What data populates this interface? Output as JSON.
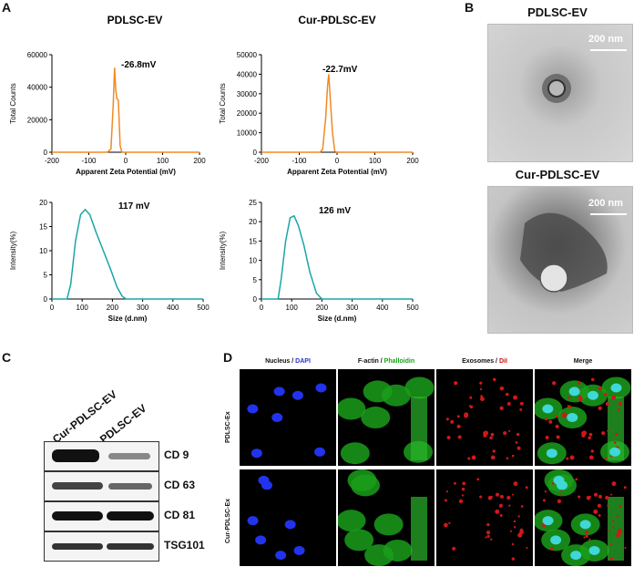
{
  "panels": {
    "a": "A",
    "b": "B",
    "c": "C",
    "d": "D"
  },
  "panel_a": {
    "charts": [
      {
        "id": "zeta-pdlsc",
        "title": "PDLSC-EV",
        "type": "line",
        "annotation": "-26.8mV",
        "xlabel": "Apparent Zeta Potential (mV)",
        "ylabel": "Total Counts",
        "xlim": [
          -200,
          200
        ],
        "ylim": [
          0,
          60000
        ],
        "xticks": [
          "-200",
          "-100",
          "0",
          "100",
          "200"
        ],
        "yticks": [
          "0",
          "20000",
          "40000",
          "60000"
        ],
        "color": "#f08a24"
      },
      {
        "id": "zeta-cur",
        "title": "Cur-PDLSC-EV",
        "type": "line",
        "annotation": "-22.7mV",
        "xlabel": "Apparent Zeta Potential (mV)",
        "ylabel": "Total Counts",
        "xlim": [
          -200,
          200
        ],
        "ylim": [
          0,
          50000
        ],
        "xticks": [
          "-200",
          "-100",
          "0",
          "100",
          "200"
        ],
        "yticks": [
          "0",
          "10000",
          "20000",
          "30000",
          "40000",
          "50000"
        ],
        "color": "#f08a24"
      },
      {
        "id": "size-pdlsc",
        "type": "line",
        "annotation": "117 mV",
        "xlabel": "Size (d.nm)",
        "ylabel": "Intensity(%)",
        "xlim": [
          0,
          500
        ],
        "ylim": [
          0,
          20
        ],
        "xticks": [
          "0",
          "100",
          "200",
          "300",
          "400",
          "500"
        ],
        "yticks": [
          "0",
          "5",
          "10",
          "15",
          "20"
        ],
        "color": "#1aa6a6"
      },
      {
        "id": "size-cur",
        "type": "line",
        "annotation": "126 mV",
        "xlabel": "Size (d.nm)",
        "ylabel": "Intensity(%)",
        "xlim": [
          0,
          500
        ],
        "ylim": [
          0,
          25
        ],
        "xticks": [
          "0",
          "100",
          "200",
          "300",
          "400",
          "500"
        ],
        "yticks": [
          "0",
          "5",
          "10",
          "15",
          "20",
          "25"
        ],
        "color": "#1aa6a6"
      }
    ]
  },
  "chart_data": [
    {
      "type": "line",
      "title": "PDLSC-EV",
      "xlabel": "Apparent Zeta Potential (mV)",
      "ylabel": "Total Counts",
      "xlim": [
        -200,
        200
      ],
      "ylim": [
        0,
        60000
      ],
      "x": [
        -200,
        -50,
        -40,
        -34,
        -30,
        -27,
        -24,
        -20,
        -15,
        -10,
        -5,
        0,
        200
      ],
      "y": [
        0,
        0,
        2000,
        28000,
        52000,
        38000,
        33000,
        32000,
        4000,
        0,
        0,
        0,
        0
      ]
    },
    {
      "type": "line",
      "title": "Cur-PDLSC-EV",
      "xlabel": "Apparent Zeta Potential (mV)",
      "ylabel": "Total Counts",
      "xlim": [
        -200,
        200
      ],
      "ylim": [
        0,
        50000
      ],
      "x": [
        -200,
        -45,
        -38,
        -30,
        -25,
        -22,
        -18,
        -12,
        -6,
        0,
        200
      ],
      "y": [
        0,
        0,
        1500,
        18000,
        34000,
        40000,
        28000,
        10000,
        500,
        0,
        0
      ]
    },
    {
      "type": "line",
      "xlabel": "Size (d.nm)",
      "ylabel": "Intensity(%)",
      "xlim": [
        0,
        500
      ],
      "ylim": [
        0,
        20
      ],
      "x": [
        0,
        50,
        62,
        78,
        95,
        110,
        125,
        145,
        170,
        195,
        215,
        232,
        245,
        500
      ],
      "y": [
        0,
        0,
        3,
        12,
        17.5,
        18.5,
        17.5,
        14,
        10,
        6,
        2.5,
        0.6,
        0,
        0
      ]
    },
    {
      "type": "line",
      "xlabel": "Size (d.nm)",
      "ylabel": "Intensity(%)",
      "xlim": [
        0,
        500
      ],
      "ylim": [
        0,
        25
      ],
      "x": [
        0,
        55,
        65,
        80,
        95,
        108,
        122,
        140,
        160,
        182,
        200,
        500
      ],
      "y": [
        0,
        0,
        5,
        15,
        21,
        21.5,
        19,
        14,
        7,
        1.5,
        0,
        0
      ]
    }
  ],
  "panel_b": {
    "images": [
      {
        "title": "PDLSC-EV",
        "scale": "200 nm"
      },
      {
        "title": "Cur-PDLSC-EV",
        "scale": "200 nm"
      }
    ]
  },
  "panel_c": {
    "lanes": [
      "Cur-PDLSC-EV",
      "PDLSC-EV"
    ],
    "bands": [
      "CD 9",
      "CD 63",
      "CD 81",
      "TSG101"
    ]
  },
  "panel_d": {
    "headers": [
      {
        "a": "Nucleus / ",
        "b": "DAPI",
        "color": "#2233cc"
      },
      {
        "a": "F-actin / ",
        "b": "Phalloidin",
        "color": "#17a317"
      },
      {
        "a": "Exosomes / ",
        "b": "DiI",
        "color": "#cc1111"
      },
      {
        "a": "Merge",
        "b": "",
        "color": "#111111"
      }
    ],
    "rows": [
      "PDLSC-Ex",
      "Cur-PDLSC-Ex"
    ]
  }
}
